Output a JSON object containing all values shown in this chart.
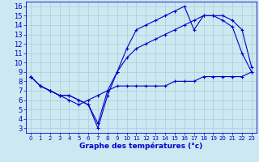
{
  "title": "Graphe des températures (°c)",
  "bg_color": "#cce8f0",
  "grid_color": "#aaccd8",
  "line_color": "#0000cc",
  "xlim": [
    -0.5,
    23.5
  ],
  "ylim": [
    2.5,
    16.5
  ],
  "xticks": [
    0,
    1,
    2,
    3,
    4,
    5,
    6,
    7,
    8,
    9,
    10,
    11,
    12,
    13,
    14,
    15,
    16,
    17,
    18,
    19,
    20,
    21,
    22,
    23
  ],
  "yticks": [
    3,
    4,
    5,
    6,
    7,
    8,
    9,
    10,
    11,
    12,
    13,
    14,
    15,
    16
  ],
  "line1_x": [
    0,
    1,
    2,
    3,
    4,
    5,
    6,
    7,
    8,
    9,
    10,
    11,
    12,
    13,
    14,
    15,
    16,
    17,
    18,
    19,
    20,
    21,
    22,
    23
  ],
  "line1_y": [
    8.5,
    7.5,
    7.0,
    6.5,
    6.5,
    6.0,
    5.5,
    3.0,
    6.5,
    9.0,
    11.5,
    13.5,
    14.0,
    14.5,
    15.0,
    15.5,
    16.0,
    13.5,
    15.0,
    15.0,
    14.5,
    13.8,
    11.0,
    9.0
  ],
  "line2_x": [
    0,
    1,
    2,
    3,
    4,
    5,
    6,
    7,
    8,
    9,
    10,
    11,
    12,
    13,
    14,
    15,
    16,
    17,
    18,
    19,
    20,
    21,
    22,
    23
  ],
  "line2_y": [
    8.5,
    7.5,
    7.0,
    6.5,
    6.5,
    6.0,
    5.5,
    3.5,
    7.0,
    9.0,
    10.5,
    11.5,
    12.0,
    12.5,
    13.0,
    13.5,
    14.0,
    14.5,
    15.0,
    15.0,
    15.0,
    14.5,
    13.5,
    9.5
  ],
  "line3_x": [
    0,
    1,
    2,
    3,
    4,
    5,
    6,
    7,
    8,
    9,
    10,
    11,
    12,
    13,
    14,
    15,
    16,
    17,
    18,
    19,
    20,
    21,
    22,
    23
  ],
  "line3_y": [
    8.5,
    7.5,
    7.0,
    6.5,
    6.0,
    5.5,
    6.0,
    6.5,
    7.0,
    7.5,
    7.5,
    7.5,
    7.5,
    7.5,
    7.5,
    8.0,
    8.0,
    8.0,
    8.5,
    8.5,
    8.5,
    8.5,
    8.5,
    9.0
  ]
}
